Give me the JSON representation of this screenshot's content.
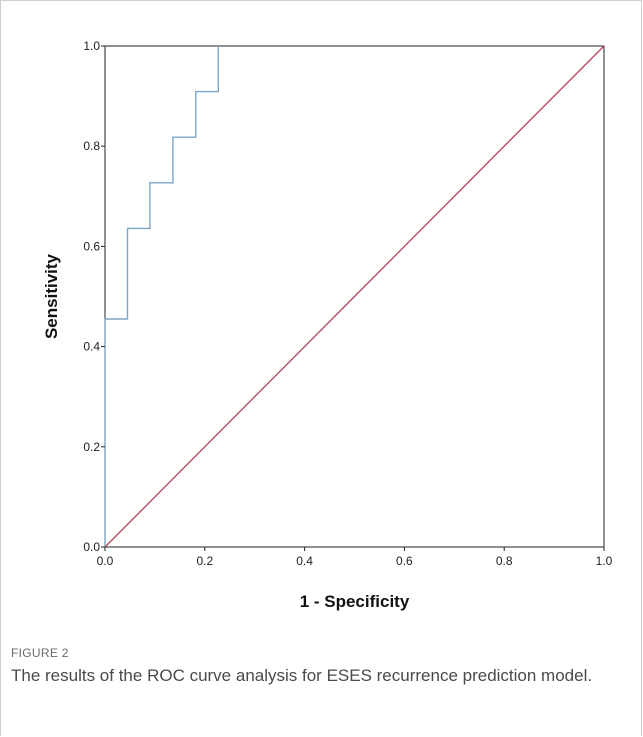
{
  "figure": {
    "label": "FIGURE 2",
    "caption": "The results of the ROC curve analysis for ESES recurrence prediction model."
  },
  "chart_data": {
    "type": "line",
    "xlabel": "1 - Specificity",
    "ylabel": "Sensitivity",
    "xlim": [
      0.0,
      1.0
    ],
    "ylim": [
      0.0,
      1.0
    ],
    "x_ticks": [
      "0.0",
      "0.2",
      "0.4",
      "0.6",
      "0.8",
      "1.0"
    ],
    "y_ticks": [
      "0.0",
      "0.2",
      "0.4",
      "0.6",
      "0.8",
      "1.0"
    ],
    "grid": false,
    "legend": "none",
    "series": [
      {
        "color": "#7aa6c6",
        "x": [
          0.0,
          0.0,
          0.045,
          0.045,
          0.09,
          0.09,
          0.136,
          0.136,
          0.182,
          0.182,
          0.227,
          0.227
        ],
        "y": [
          0.0,
          0.455,
          0.455,
          0.636,
          0.636,
          0.727,
          0.727,
          0.818,
          0.818,
          0.909,
          0.909,
          1.0
        ]
      },
      {
        "color": "#b5505f",
        "x": [
          0.0,
          1.0
        ],
        "y": [
          0.0,
          1.0
        ]
      }
    ]
  }
}
